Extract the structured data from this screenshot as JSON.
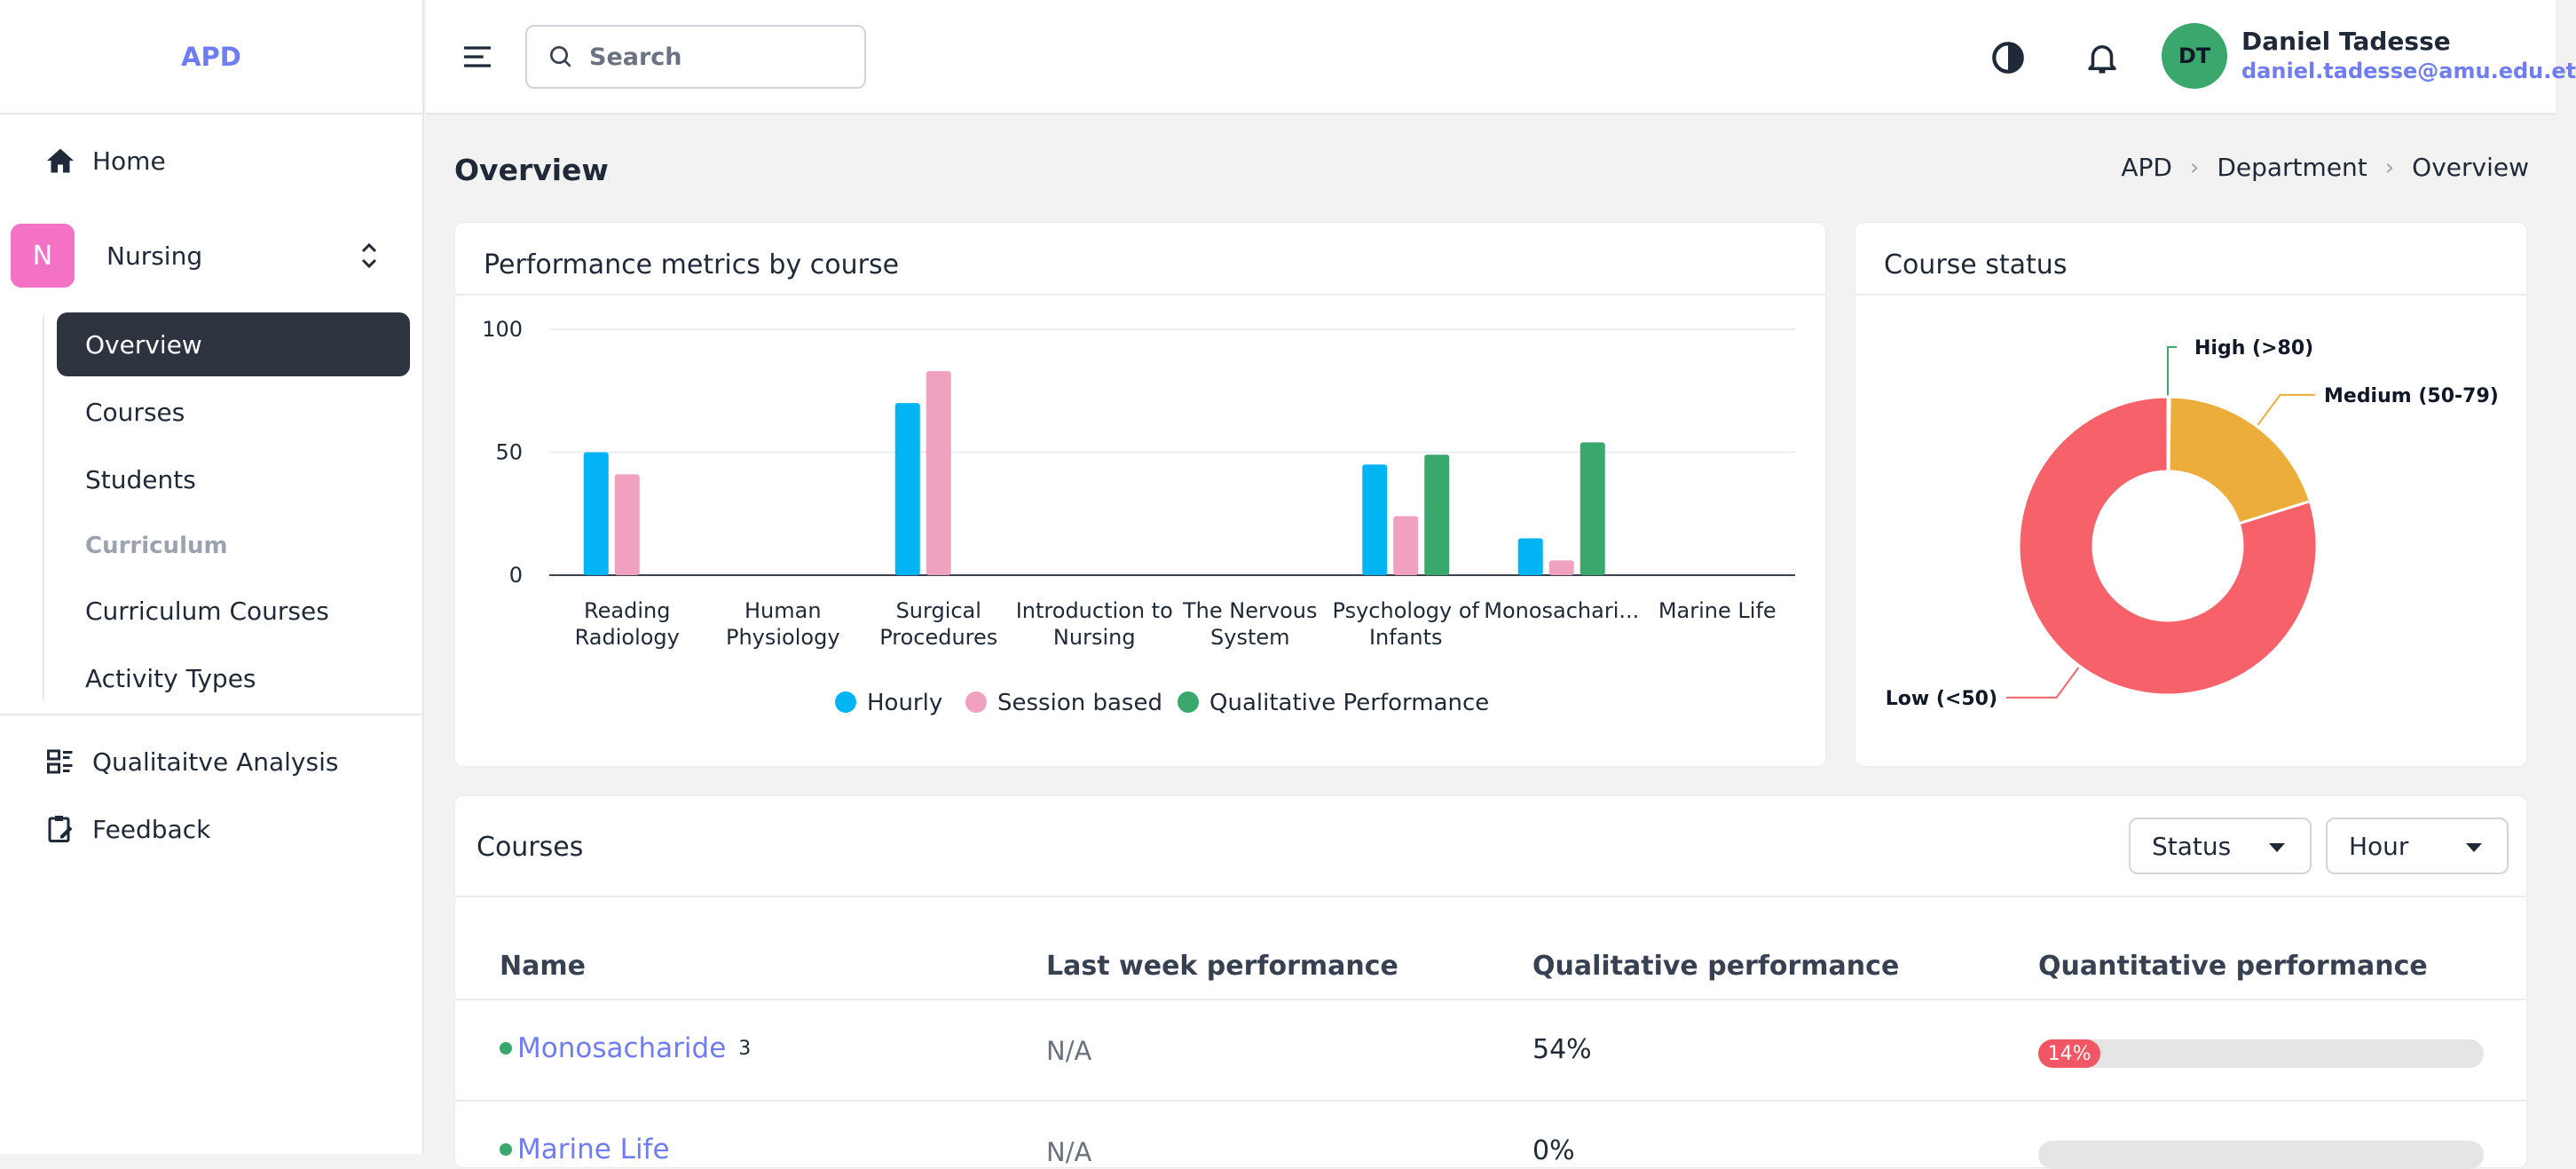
{
  "brand": "APD",
  "nav": {
    "home": "Home",
    "workspace": {
      "initial": "N",
      "label": "Nursing"
    },
    "sub_items": [
      {
        "label": "Overview",
        "active": true
      },
      {
        "label": "Courses",
        "active": false
      },
      {
        "label": "Students",
        "active": false
      }
    ],
    "section_label": "Curriculum",
    "curriculum_items": [
      {
        "label": "Curriculum Courses"
      },
      {
        "label": "Activity Types"
      }
    ],
    "qualitative": "Qualitaitve Analysis",
    "feedback": "Feedback"
  },
  "header": {
    "search_placeholder": "Search",
    "user": {
      "initials": "DT",
      "name": "Daniel Tadesse",
      "email": "daniel.tadesse@amu.edu.et"
    }
  },
  "page": {
    "title": "Overview",
    "breadcrumb": [
      "APD",
      "Department",
      "Overview"
    ]
  },
  "performance_card": {
    "title": "Performance metrics by course",
    "chart_data": {
      "type": "bar",
      "categories": [
        [
          "Reading",
          "Radiology"
        ],
        [
          "Human",
          "Physiology"
        ],
        [
          "Surgical",
          "Procedures"
        ],
        [
          "Introduction to",
          "Nursing"
        ],
        [
          "The Nervous",
          "System"
        ],
        [
          "Psychology of",
          "Infants"
        ],
        [
          "Monosachari..."
        ],
        [
          "Marine Life"
        ]
      ],
      "series": [
        {
          "name": "Hourly",
          "color": "#03b4f5",
          "values": [
            50,
            0,
            70,
            0,
            0,
            45,
            15,
            0
          ]
        },
        {
          "name": "Session based",
          "color": "#f0a1bf",
          "values": [
            41,
            0,
            83,
            0,
            0,
            24,
            6,
            0
          ]
        },
        {
          "name": "Qualitative Performance",
          "color": "#3aa76d",
          "values": [
            0,
            0,
            0,
            0,
            0,
            49,
            54,
            0
          ]
        }
      ],
      "yticks": [
        0,
        50,
        100
      ],
      "ylim": [
        0,
        100
      ],
      "legend": "bottom"
    }
  },
  "status_card": {
    "title": "Course status",
    "chart_data": {
      "type": "pie",
      "donut": true,
      "slices": [
        {
          "label": "High (>80)",
          "value": 0.2,
          "color": "#3aa76d"
        },
        {
          "label": "Medium (50-79)",
          "value": 20,
          "color": "#ecad3b"
        },
        {
          "label": "Low (<50)",
          "value": 80,
          "color": "#f7626a"
        }
      ]
    }
  },
  "courses": {
    "title": "Courses",
    "filters": [
      "Status",
      "Hour"
    ],
    "columns": [
      "Name",
      "Last week performance",
      "Qualitative performance",
      "Quantitative performance"
    ],
    "rows": [
      {
        "name": "Monosacharide",
        "count": "3",
        "last_week": "N/A",
        "qualitative": "54%",
        "quantitative": 14,
        "quantitative_label": "14%"
      },
      {
        "name": "Marine Life",
        "count": "",
        "last_week": "N/A",
        "qualitative": "0%",
        "quantitative": 0,
        "quantitative_label": ""
      }
    ]
  }
}
